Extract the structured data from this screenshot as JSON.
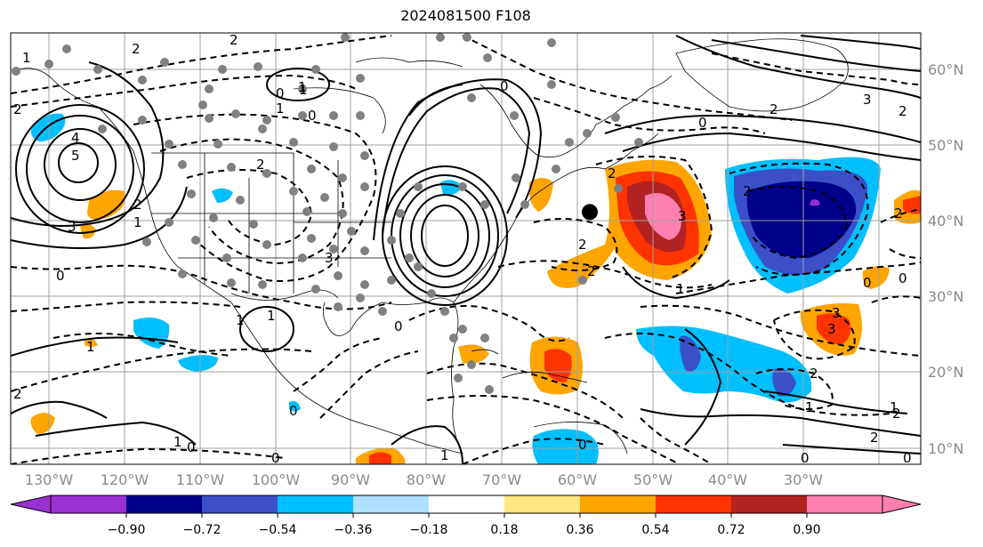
{
  "title": "2024081500 F108",
  "map": {
    "lon_range": [
      -137,
      -16
    ],
    "lat_range": [
      7,
      66
    ],
    "grid_lon": [
      -130,
      -120,
      -110,
      -100,
      -90,
      -80,
      -70,
      -60,
      -50,
      -40,
      -30,
      -20
    ],
    "grid_lat": [
      10,
      20,
      30,
      40,
      50,
      60
    ],
    "lon_labels": [
      "130°W",
      "120°W",
      "110°W",
      "100°W",
      "90°W",
      "80°W",
      "70°W",
      "60°W",
      "50°W",
      "40°W",
      "30°W"
    ],
    "lat_labels": [
      "10°N",
      "20°N",
      "30°N",
      "40°N",
      "50°N",
      "60°N"
    ],
    "grid_color": "#a0a0a0",
    "label_color": "#8a8a8a"
  },
  "colorbar": {
    "colors": [
      "#9a30d0",
      "#00008b",
      "#3a4fc8",
      "#00bfff",
      "#b0e0ff",
      "#ffffff",
      "#ffe680",
      "#ffa500",
      "#ff3300",
      "#b22222",
      "#ff80b0"
    ],
    "tick_labels": [
      "−0.90",
      "−0.72",
      "−0.54",
      "−0.36",
      "−0.18",
      "0.18",
      "0.36",
      "0.54",
      "0.72",
      "0.90"
    ]
  },
  "contour_labels": [
    "2",
    "2",
    "1",
    "2",
    "1",
    "0",
    "1",
    "0",
    "2",
    "0",
    "1",
    "1",
    "3",
    "0",
    "1",
    "2",
    "0",
    "3",
    "2",
    "1",
    "2",
    "3",
    "3",
    "2",
    "0",
    "2",
    "2",
    "0",
    "2",
    "4",
    "5",
    "3",
    "2",
    "1",
    "0",
    "3",
    "0",
    "1",
    "0",
    "1",
    "2",
    "2",
    "2",
    "0",
    "0",
    "1",
    "1",
    "0",
    "2",
    "1",
    "0"
  ],
  "marker": {
    "lon": -60,
    "lat": 41.5
  }
}
